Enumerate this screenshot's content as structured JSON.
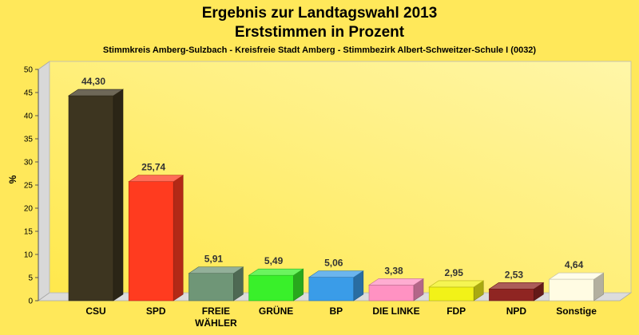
{
  "chart_data": {
    "type": "bar",
    "title": "Ergebnis zur Landtagswahl 2013",
    "subtitle_line1": "Erststimmen in Prozent",
    "subtitle_line2": "Stimmkreis Amberg-Sulzbach - Kreisfreie Stadt Amberg - Stimmbezirk Albert-Schweitzer-Schule I (0032)",
    "ylabel": "%",
    "ylim": [
      0,
      50
    ],
    "yticks": [
      0,
      5,
      10,
      15,
      20,
      25,
      30,
      35,
      40,
      45,
      50
    ],
    "grid": false,
    "categories": [
      [
        "CSU"
      ],
      [
        "SPD"
      ],
      [
        "FREIE",
        "WÄHLER"
      ],
      [
        "GRÜNE"
      ],
      [
        "BP"
      ],
      [
        "DIE LINKE"
      ],
      [
        "FDP"
      ],
      [
        "NPD"
      ],
      [
        "Sonstige"
      ]
    ],
    "values": [
      44.3,
      25.74,
      5.91,
      5.49,
      5.06,
      3.38,
      2.95,
      2.53,
      4.64
    ],
    "value_labels": [
      "44,30",
      "25,74",
      "5,91",
      "5,49",
      "5,06",
      "3,38",
      "2,95",
      "2,53",
      "4,64"
    ],
    "colors": [
      "#3d3520",
      "#ff3b1f",
      "#6f9677",
      "#39f02a",
      "#3a9ce8",
      "#ff92c2",
      "#f2f218",
      "#8f2522",
      "#fffce3"
    ]
  }
}
